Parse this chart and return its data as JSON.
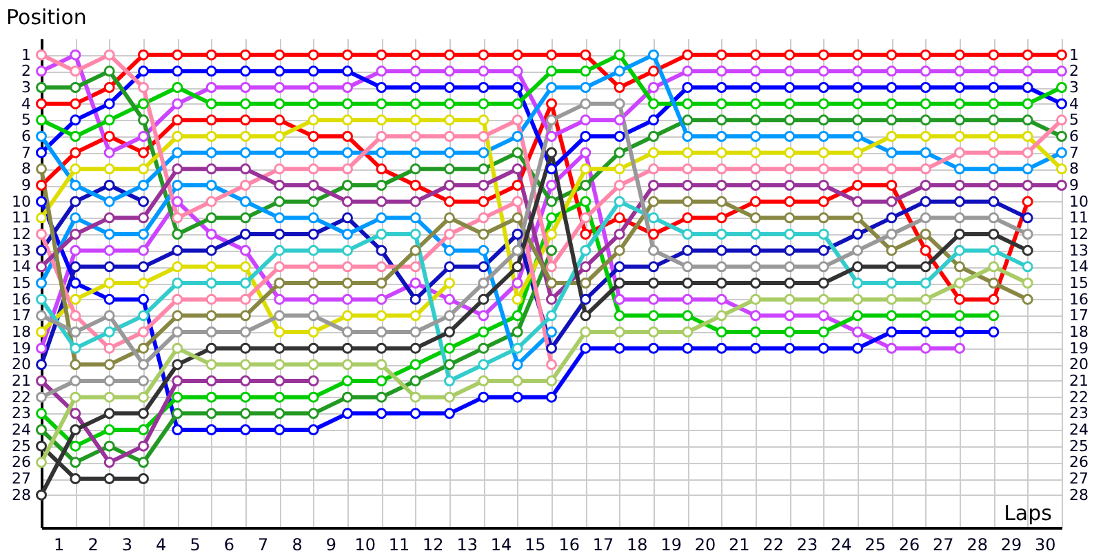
{
  "chart_data": {
    "type": "line",
    "xlabel": "Laps",
    "ylabel": "Position",
    "x": [
      0,
      1,
      2,
      3,
      4,
      5,
      6,
      7,
      8,
      9,
      10,
      11,
      12,
      13,
      14,
      15,
      16,
      17,
      18,
      19,
      20,
      21,
      22,
      23,
      24,
      25,
      26,
      27,
      28,
      29,
      30
    ],
    "xlim": [
      0,
      30
    ],
    "xticks": [
      {
        "value": 0,
        "label": null
      },
      {
        "value": 0.5,
        "label": "1"
      },
      {
        "value": 1,
        "label": null
      },
      {
        "value": 1.5,
        "label": "2"
      },
      {
        "value": 2,
        "label": null
      },
      {
        "value": 2.5,
        "label": "3"
      },
      {
        "value": 3,
        "label": null
      },
      {
        "value": 3.5,
        "label": "4"
      },
      {
        "value": 4,
        "label": null
      },
      {
        "value": 4.5,
        "label": "5"
      },
      {
        "value": 5,
        "label": null
      },
      {
        "value": 5.5,
        "label": "6"
      },
      {
        "value": 6,
        "label": null
      },
      {
        "value": 6.5,
        "label": "7"
      },
      {
        "value": 7,
        "label": null
      },
      {
        "value": 7.5,
        "label": "8"
      },
      {
        "value": 8,
        "label": null
      },
      {
        "value": 8.5,
        "label": "9"
      },
      {
        "value": 9,
        "label": null
      },
      {
        "value": 9.5,
        "label": "10"
      },
      {
        "value": 10,
        "label": null
      },
      {
        "value": 10.5,
        "label": "11"
      },
      {
        "value": 11,
        "label": null
      },
      {
        "value": 11.5,
        "label": "12"
      },
      {
        "value": 12,
        "label": null
      },
      {
        "value": 12.5,
        "label": "13"
      },
      {
        "value": 13,
        "label": null
      },
      {
        "value": 13.5,
        "label": "14"
      },
      {
        "value": 14,
        "label": null
      },
      {
        "value": 14.5,
        "label": "15"
      },
      {
        "value": 15,
        "label": null
      },
      {
        "value": 15.5,
        "label": "16"
      },
      {
        "value": 16,
        "label": null
      },
      {
        "value": 16.5,
        "label": "17"
      },
      {
        "value": 17,
        "label": null
      },
      {
        "value": 17.5,
        "label": "18"
      },
      {
        "value": 18,
        "label": null
      },
      {
        "value": 18.5,
        "label": "19"
      },
      {
        "value": 19,
        "label": null
      },
      {
        "value": 19.5,
        "label": "20"
      },
      {
        "value": 20,
        "label": null
      },
      {
        "value": 20.5,
        "label": "21"
      },
      {
        "value": 21,
        "label": null
      },
      {
        "value": 21.5,
        "label": "22"
      },
      {
        "value": 22,
        "label": null
      },
      {
        "value": 22.5,
        "label": "23"
      },
      {
        "value": 23,
        "label": null
      },
      {
        "value": 23.5,
        "label": "24"
      },
      {
        "value": 24,
        "label": null
      },
      {
        "value": 24.5,
        "label": "25"
      },
      {
        "value": 25,
        "label": null
      },
      {
        "value": 25.5,
        "label": "26"
      },
      {
        "value": 26,
        "label": null
      },
      {
        "value": 26.5,
        "label": "27"
      },
      {
        "value": 27,
        "label": null
      },
      {
        "value": 27.5,
        "label": "28"
      },
      {
        "value": 28,
        "label": null
      },
      {
        "value": 28.5,
        "label": "29"
      },
      {
        "value": 29,
        "label": null
      },
      {
        "value": 29.5,
        "label": "30"
      },
      {
        "value": 30,
        "label": null
      }
    ],
    "ylim": [
      30,
      0
    ],
    "yticks": [
      1,
      2,
      3,
      4,
      5,
      6,
      7,
      8,
      9,
      10,
      11,
      12,
      13,
      14,
      15,
      16,
      17,
      18,
      19,
      20,
      21,
      22,
      23,
      24,
      25,
      26,
      27,
      28
    ],
    "y2lim": [
      30,
      0
    ],
    "y2ticks": [
      1,
      2,
      3,
      4,
      5,
      6,
      7,
      8,
      9,
      10,
      11,
      12,
      13,
      14,
      15,
      16,
      17,
      18,
      19,
      20,
      21,
      22,
      23,
      24,
      25,
      26,
      27,
      28
    ],
    "grid": true,
    "marker": "circle",
    "line_style": "solid",
    "series": [
      {
        "color": "#ff0000",
        "values": [
          4,
          4,
          3,
          1,
          1,
          1,
          1,
          1,
          1,
          1,
          1,
          1,
          1,
          1,
          1,
          1,
          1,
          3,
          2,
          1,
          1,
          1,
          1,
          1,
          1,
          1,
          1,
          1,
          1,
          1,
          1
        ]
      },
      {
        "color": "#ff0000",
        "values": [
          9,
          7,
          6,
          7,
          5,
          5,
          5,
          5,
          6,
          6,
          8,
          9,
          10,
          10,
          9,
          4,
          12,
          11,
          12,
          11,
          11,
          10,
          10,
          10,
          9,
          9,
          13,
          16,
          16,
          10,
          null
        ]
      },
      {
        "color": "#cc44ff",
        "values": [
          2,
          1,
          7,
          6,
          4,
          3,
          3,
          3,
          3,
          3,
          2,
          2,
          2,
          2,
          2,
          6,
          5,
          5,
          3,
          2,
          2,
          2,
          2,
          2,
          2,
          2,
          2,
          2,
          2,
          2,
          2
        ]
      },
      {
        "color": "#cc44ff",
        "values": [
          19,
          13,
          13,
          13,
          10,
          12,
          13,
          16,
          16,
          16,
          16,
          15,
          16,
          17,
          15,
          9,
          7,
          16,
          16,
          16,
          16,
          17,
          17,
          17,
          18,
          19,
          19,
          19,
          null,
          null,
          null
        ]
      },
      {
        "color": "#0000ff",
        "values": [
          7,
          5,
          4,
          2,
          2,
          2,
          2,
          2,
          2,
          2,
          3,
          3,
          3,
          3,
          3,
          8,
          6,
          6,
          5,
          3,
          3,
          3,
          3,
          3,
          3,
          3,
          3,
          3,
          3,
          3,
          4
        ]
      },
      {
        "color": "#0000ff",
        "values": [
          10,
          15,
          16,
          16,
          24,
          24,
          24,
          24,
          24,
          23,
          23,
          23,
          23,
          22,
          22,
          22,
          19,
          19,
          19,
          19,
          19,
          19,
          19,
          19,
          19,
          18,
          18,
          18,
          18,
          null,
          null
        ]
      },
      {
        "color": "#1111bb",
        "values": [
          20,
          14,
          14,
          14,
          13,
          13,
          12,
          12,
          12,
          11,
          13,
          16,
          14,
          14,
          12,
          19,
          16,
          14,
          14,
          13,
          13,
          13,
          13,
          13,
          12,
          11,
          10,
          10,
          10,
          11,
          null
        ]
      },
      {
        "color": "#1111bb",
        "values": [
          13,
          10,
          9,
          10,
          null,
          null,
          null,
          null,
          null,
          null,
          null,
          null,
          null,
          null,
          null,
          null,
          null,
          null,
          null,
          null,
          null,
          null,
          null,
          null,
          null,
          null,
          null,
          null,
          null,
          null,
          null
        ]
      },
      {
        "color": "#00cc00",
        "values": [
          5,
          6,
          5,
          4,
          3,
          4,
          4,
          4,
          4,
          4,
          4,
          4,
          4,
          4,
          4,
          2,
          2,
          1,
          4,
          4,
          4,
          4,
          4,
          4,
          4,
          4,
          4,
          4,
          4,
          4,
          3
        ]
      },
      {
        "color": "#00cc00",
        "values": [
          23,
          25,
          24,
          24,
          22,
          22,
          22,
          22,
          22,
          21,
          21,
          20,
          19,
          18,
          17,
          11,
          10,
          17,
          17,
          17,
          18,
          18,
          18,
          18,
          17,
          17,
          17,
          17,
          17,
          null,
          null
        ]
      },
      {
        "color": "#229922",
        "values": [
          3,
          3,
          2,
          5,
          12,
          11,
          11,
          10,
          10,
          9,
          9,
          8,
          8,
          8,
          7,
          10,
          9,
          7,
          6,
          5,
          5,
          5,
          5,
          5,
          5,
          5,
          5,
          5,
          5,
          5,
          6
        ]
      },
      {
        "color": "#229922",
        "values": [
          24,
          26,
          25,
          26,
          23,
          23,
          23,
          23,
          23,
          22,
          22,
          21,
          20,
          19,
          18,
          13,
          null,
          null,
          null,
          null,
          null,
          null,
          null,
          null,
          null,
          null,
          null,
          null,
          null,
          null,
          null
        ]
      },
      {
        "color": "#0099ff",
        "values": [
          6,
          9,
          10,
          9,
          7,
          7,
          7,
          7,
          7,
          7,
          7,
          7,
          7,
          7,
          6,
          3,
          3,
          2,
          1,
          6,
          6,
          6,
          6,
          6,
          6,
          7,
          7,
          8,
          8,
          8,
          7
        ]
      },
      {
        "color": "#0099ff",
        "values": [
          15,
          11,
          12,
          12,
          9,
          9,
          10,
          11,
          11,
          12,
          11,
          11,
          13,
          13,
          20,
          18,
          null,
          null,
          null,
          null,
          null,
          null,
          null,
          null,
          null,
          null,
          null,
          null,
          null,
          null,
          null
        ]
      },
      {
        "color": "#dddd00",
        "values": [
          11,
          8,
          8,
          8,
          6,
          6,
          6,
          6,
          5,
          5,
          5,
          5,
          5,
          5,
          16,
          12,
          8,
          8,
          7,
          7,
          7,
          7,
          7,
          7,
          7,
          6,
          6,
          6,
          6,
          6,
          8
        ]
      },
      {
        "color": "#dddd00",
        "values": [
          18,
          16,
          15,
          15,
          14,
          14,
          14,
          18,
          18,
          17,
          17,
          17,
          15,
          null,
          null,
          null,
          null,
          null,
          null,
          null,
          null,
          null,
          null,
          null,
          null,
          null,
          null,
          null,
          null,
          null,
          null
        ]
      },
      {
        "color": "#ff88aa",
        "values": [
          1,
          2,
          1,
          3,
          11,
          10,
          9,
          8,
          8,
          8,
          6,
          6,
          6,
          6,
          5,
          14,
          11,
          9,
          8,
          8,
          8,
          8,
          8,
          8,
          8,
          8,
          8,
          7,
          7,
          7,
          5
        ]
      },
      {
        "color": "#ff88aa",
        "values": [
          12,
          17,
          19,
          18,
          16,
          16,
          16,
          14,
          14,
          14,
          14,
          14,
          12,
          11,
          10,
          20,
          null,
          null,
          null,
          null,
          null,
          null,
          null,
          null,
          null,
          null,
          null,
          null,
          null,
          null,
          null
        ]
      },
      {
        "color": "#993399",
        "values": [
          14,
          12,
          11,
          11,
          8,
          8,
          8,
          9,
          9,
          10,
          10,
          10,
          9,
          9,
          8,
          16,
          14,
          12,
          9,
          9,
          9,
          9,
          9,
          9,
          10,
          10,
          9,
          9,
          9,
          9,
          9
        ]
      },
      {
        "color": "#993399",
        "values": [
          21,
          23,
          26,
          25,
          21,
          21,
          21,
          21,
          21,
          null,
          null,
          null,
          null,
          null,
          null,
          null,
          null,
          null,
          null,
          null,
          null,
          null,
          null,
          null,
          null,
          null,
          null,
          null,
          null,
          null,
          null
        ]
      },
      {
        "color": "#888844",
        "values": [
          8,
          20,
          20,
          19,
          17,
          17,
          17,
          15,
          15,
          15,
          15,
          13,
          11,
          12,
          11,
          15,
          15,
          13,
          10,
          10,
          10,
          11,
          11,
          11,
          11,
          13,
          12,
          14,
          15,
          16,
          null
        ]
      },
      {
        "color": "#33cccc",
        "values": [
          16,
          19,
          18,
          17,
          15,
          15,
          15,
          13,
          13,
          13,
          12,
          12,
          21,
          20,
          19,
          17,
          13,
          10,
          11,
          12,
          12,
          12,
          12,
          12,
          15,
          15,
          15,
          13,
          13,
          14,
          null
        ]
      },
      {
        "color": "#999999",
        "values": [
          17,
          18,
          17,
          20,
          18,
          18,
          18,
          17,
          17,
          18,
          18,
          18,
          17,
          15,
          13,
          5,
          4,
          4,
          13,
          14,
          14,
          14,
          14,
          14,
          13,
          12,
          11,
          11,
          11,
          12,
          null
        ]
      },
      {
        "color": "#999999",
        "values": [
          22,
          21,
          21,
          21,
          null,
          null,
          null,
          null,
          null,
          null,
          null,
          null,
          null,
          null,
          null,
          null,
          null,
          null,
          null,
          null,
          null,
          null,
          null,
          null,
          null,
          null,
          null,
          null,
          null,
          null,
          null
        ]
      },
      {
        "color": "#333333",
        "values": [
          28,
          24,
          23,
          23,
          20,
          19,
          19,
          19,
          19,
          19,
          19,
          19,
          18,
          16,
          14,
          7,
          17,
          15,
          15,
          15,
          15,
          15,
          15,
          15,
          14,
          14,
          14,
          12,
          12,
          13,
          null
        ]
      },
      {
        "color": "#333333",
        "values": [
          25,
          27,
          27,
          27,
          null,
          null,
          null,
          null,
          null,
          null,
          null,
          null,
          null,
          null,
          null,
          null,
          null,
          null,
          null,
          null,
          null,
          null,
          null,
          null,
          null,
          null,
          null,
          null,
          null,
          null,
          null
        ]
      },
      {
        "color": "#aacc66",
        "values": [
          26,
          22,
          22,
          22,
          19,
          20,
          20,
          20,
          20,
          20,
          20,
          22,
          22,
          21,
          21,
          21,
          18,
          18,
          18,
          18,
          17,
          16,
          16,
          16,
          16,
          16,
          16,
          15,
          14,
          15,
          null
        ]
      }
    ]
  }
}
